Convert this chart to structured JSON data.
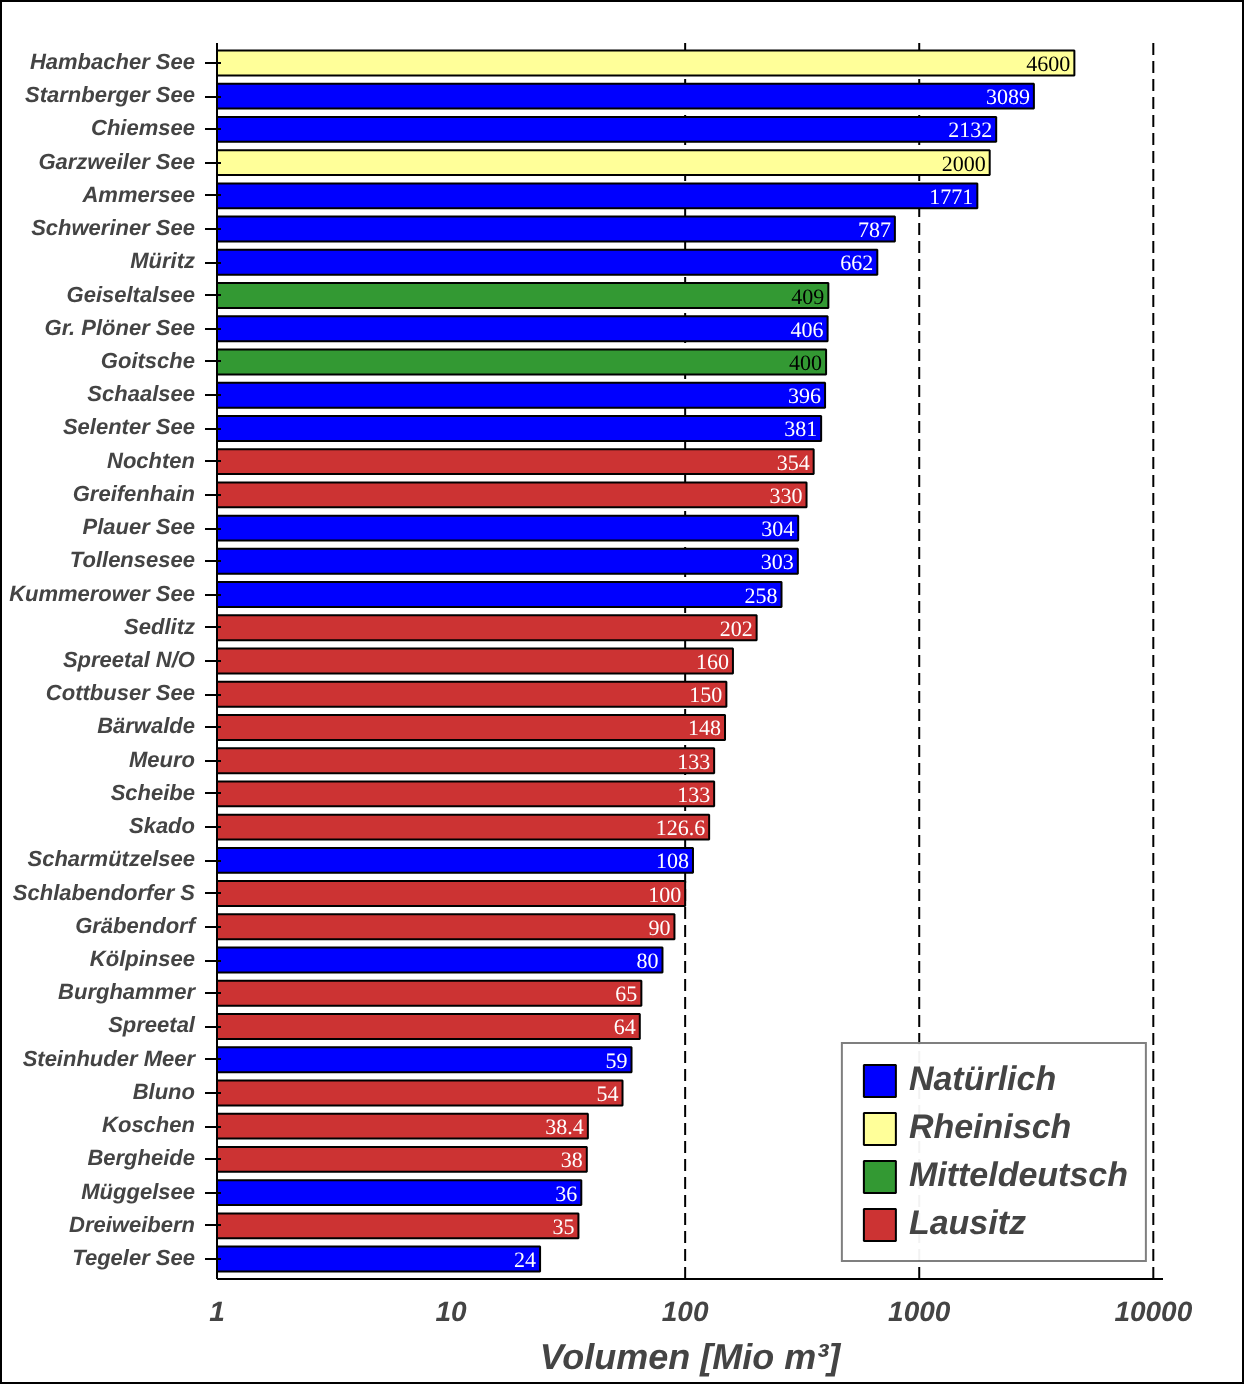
{
  "chart_data": {
    "type": "bar",
    "orientation": "horizontal",
    "log": "x",
    "xlabel": "Volumen [Mio m³]",
    "categories": [
      "Hambacher See",
      "Starnberger See",
      "Chiemsee",
      "Garzweiler See",
      "Ammersee",
      "Schweriner See",
      "Müritz",
      "Geiseltalsee",
      "Gr. Plöner See",
      "Goitsche",
      "Schaalsee",
      "Selenter See",
      "Nochten",
      "Greifenhain",
      "Plauer See",
      "Tollensesee",
      "Kummerower See",
      "Sedlitz",
      "Spreetal N/O",
      "Cottbuser See",
      "Bärwalde",
      "Meuro",
      "Scheibe",
      "Skado",
      "Scharmützelsee",
      "Schlabendorfer S",
      "Gräbendorf",
      "Kölpinsee",
      "Burghammer",
      "Spreetal",
      "Steinhuder Meer",
      "Bluno",
      "Koschen",
      "Bergheide",
      "Müggelsee",
      "Dreiweibern",
      "Tegeler See"
    ],
    "series": [
      {
        "name": "Natürlich",
        "color": "#0000ff",
        "values": [
          null,
          3089,
          2132,
          null,
          1771,
          787,
          662,
          null,
          406,
          null,
          396,
          381,
          null,
          null,
          304,
          303,
          258,
          null,
          null,
          null,
          null,
          null,
          null,
          null,
          108,
          null,
          null,
          80,
          null,
          null,
          59,
          null,
          null,
          null,
          36,
          null,
          24
        ]
      },
      {
        "name": "Rheinisch",
        "color": "#ffff99",
        "values": [
          4600,
          null,
          null,
          2000,
          null,
          null,
          null,
          null,
          null,
          null,
          null,
          null,
          null,
          null,
          null,
          null,
          null,
          null,
          null,
          null,
          null,
          null,
          null,
          null,
          null,
          null,
          null,
          null,
          null,
          null,
          null,
          null,
          null,
          null,
          null,
          null,
          null
        ]
      },
      {
        "name": "Mitteldeutsch",
        "color": "#339933",
        "values": [
          null,
          null,
          null,
          null,
          null,
          null,
          null,
          409,
          null,
          400,
          null,
          null,
          null,
          null,
          null,
          null,
          null,
          null,
          null,
          null,
          null,
          null,
          null,
          null,
          null,
          null,
          null,
          null,
          null,
          null,
          null,
          null,
          null,
          null,
          null,
          null,
          null
        ]
      },
      {
        "name": "Lausitz",
        "color": "#cc3333",
        "values": [
          null,
          null,
          null,
          null,
          null,
          null,
          null,
          null,
          null,
          null,
          null,
          null,
          354,
          330,
          null,
          null,
          null,
          202,
          160,
          150,
          148,
          133,
          133,
          126.6,
          null,
          100,
          90,
          null,
          65,
          64,
          null,
          54,
          38.4,
          38,
          null,
          35,
          null
        ]
      }
    ],
    "xlim": [
      1,
      11000
    ],
    "xticks": [
      1,
      10,
      100,
      1000,
      10000
    ],
    "ref_lines": [
      {
        "axis": "x",
        "value": 100,
        "line_style": "dashed"
      },
      {
        "axis": "x",
        "value": 1000,
        "line_style": "dashed"
      },
      {
        "axis": "x",
        "value": 10000,
        "line_style": "dashed"
      }
    ],
    "data_labels": true,
    "legend": "bottom right",
    "grid": false
  }
}
